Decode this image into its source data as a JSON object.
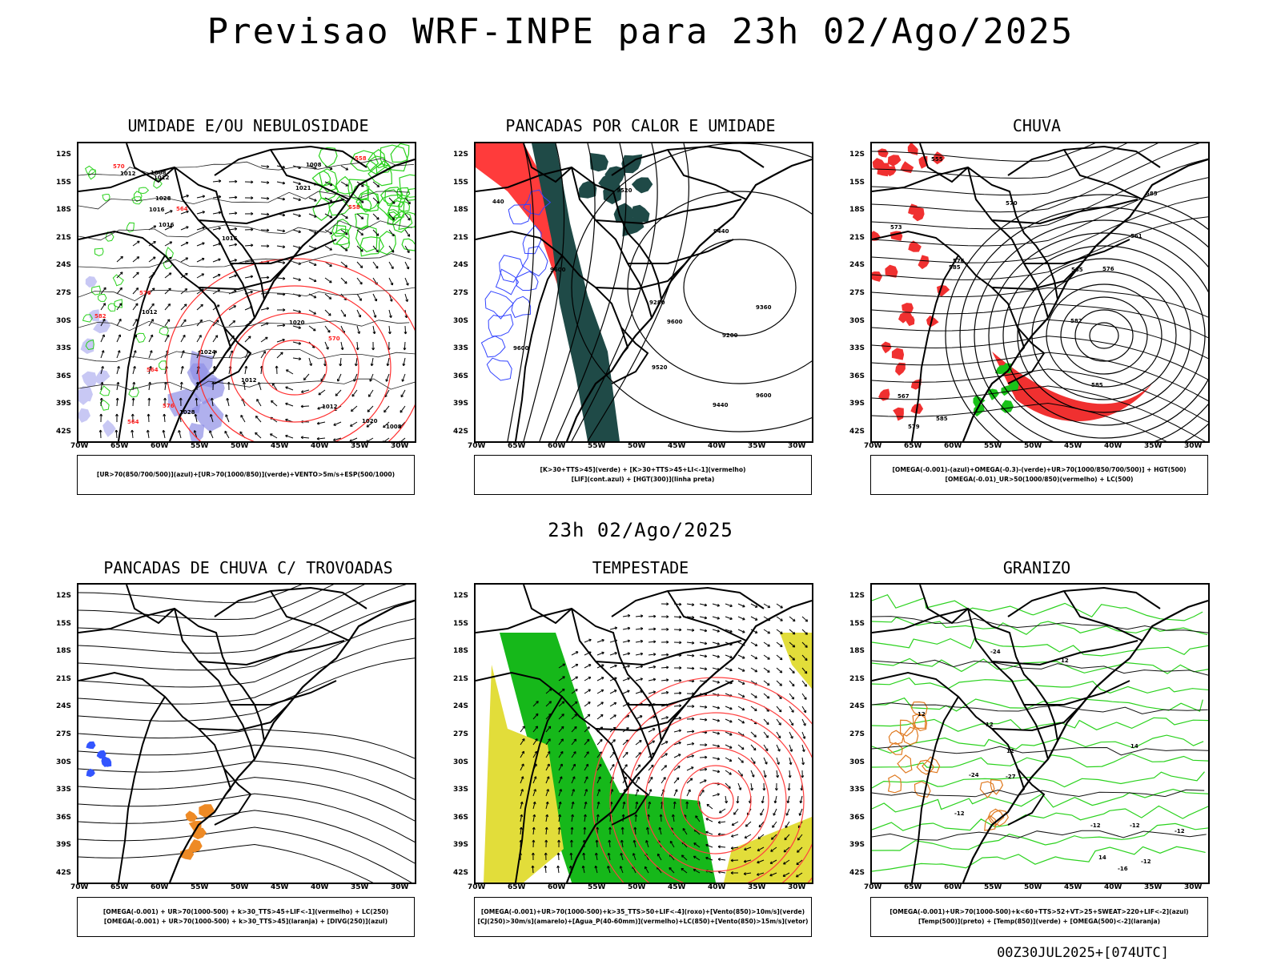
{
  "main_title": "Previsao WRF-INPE  para 23h 02/Ago/2025",
  "mid_title": "23h 02/Ago/2025",
  "footer": "00Z30JUL2025+[074UTC]",
  "lat_labels": [
    "12S",
    "15S",
    "18S",
    "21S",
    "24S",
    "27S",
    "30S",
    "33S",
    "36S",
    "39S",
    "42S"
  ],
  "lon_labels": [
    "70W",
    "65W",
    "60W",
    "55W",
    "50W",
    "45W",
    "40W",
    "35W",
    "30W"
  ],
  "panels": [
    {
      "title": "UMIDADE E/OU NEBULOSIDADE",
      "legend": [
        "[UR>70(850/700/500)](azul)+[UR>70(1000/850)](verde)+VENTO>5m/s+ESP(500/1000)"
      ],
      "contour_labels": [
        "1016",
        "1016",
        "1020",
        "1021",
        "1024",
        "1012",
        "1020",
        "1012",
        "1008",
        "1028",
        "1016",
        "1028",
        "1008",
        "1012",
        "1008",
        "1012",
        "1012",
        "570",
        "564",
        "558",
        "558",
        "564",
        "570",
        "576",
        "582",
        "576",
        "564"
      ]
    },
    {
      "title": "PANCADAS POR CALOR E UMIDADE",
      "legend": [
        "[K>30+TTS>45](verde) + [K>30+TTS>45+LI<-1](vermelho)",
        "[LIF](cont.azul) + [HGT(300)](linha preta)"
      ],
      "contour_labels": [
        "9600",
        "9600",
        "9600",
        "9600",
        "9520",
        "9440",
        "9360",
        "9280",
        "9200",
        "9520",
        "9440",
        "440"
      ]
    },
    {
      "title": "CHUVA",
      "legend": [
        "[OMEGA(-0.001)-(azul)+OMEGA(-0.3)-(verde)+UR>70(1000/850/700/500)] + HGT(500)",
        "[OMEGA(-0.01)_UR>50(1000/850)(vermelho) + LC(500)"
      ],
      "contour_labels": [
        "585",
        "585",
        "585",
        "585",
        "579",
        "573",
        "576",
        "570",
        "567",
        "561",
        "555",
        "582",
        "576",
        "585"
      ]
    },
    {
      "title": "PANCADAS DE CHUVA C/ TROVOADAS",
      "legend": [
        "[OMEGA(-0.001) + UR>70(1000-500) + k>30_TTS>45+LIF<-1](vermelho) + LC(250)",
        "[OMEGA(-0.001) + UR>70(1000-500) + k>30_TTS>45](laranja) + [DIVG(250)](azul)"
      ],
      "contour_labels": []
    },
    {
      "title": "TEMPESTADE",
      "legend": [
        "[OMEGA(-0.001)+UR>70(1000-500)+k>35_TTS>50+LIF<-4](roxo)+[Vento(850)>10m/s](verde)",
        "[CJ(250)>30m/s](amarelo)+[Agua_P(40-60mm)](vermelho)+LC(850)+[Vento(850)>15m/s](vetor)"
      ],
      "contour_labels": []
    },
    {
      "title": "GRANIZO",
      "legend": [
        "[OMEGA(-0.001)+UR>70(1000-500)+k<60+TTS>52+VT>25+SWEAT>220+LIF<-2](azul)",
        "[Temp(500)](preto) + [Temp(850)](verde) + [OMEGA(500)<-2](laranja)"
      ],
      "contour_labels": [
        "-12",
        "-12",
        "-12",
        "-24",
        "-12",
        "-12",
        "-16",
        "12",
        "12",
        "12",
        "14",
        "14",
        "12",
        "-27",
        "-24"
      ]
    }
  ]
}
